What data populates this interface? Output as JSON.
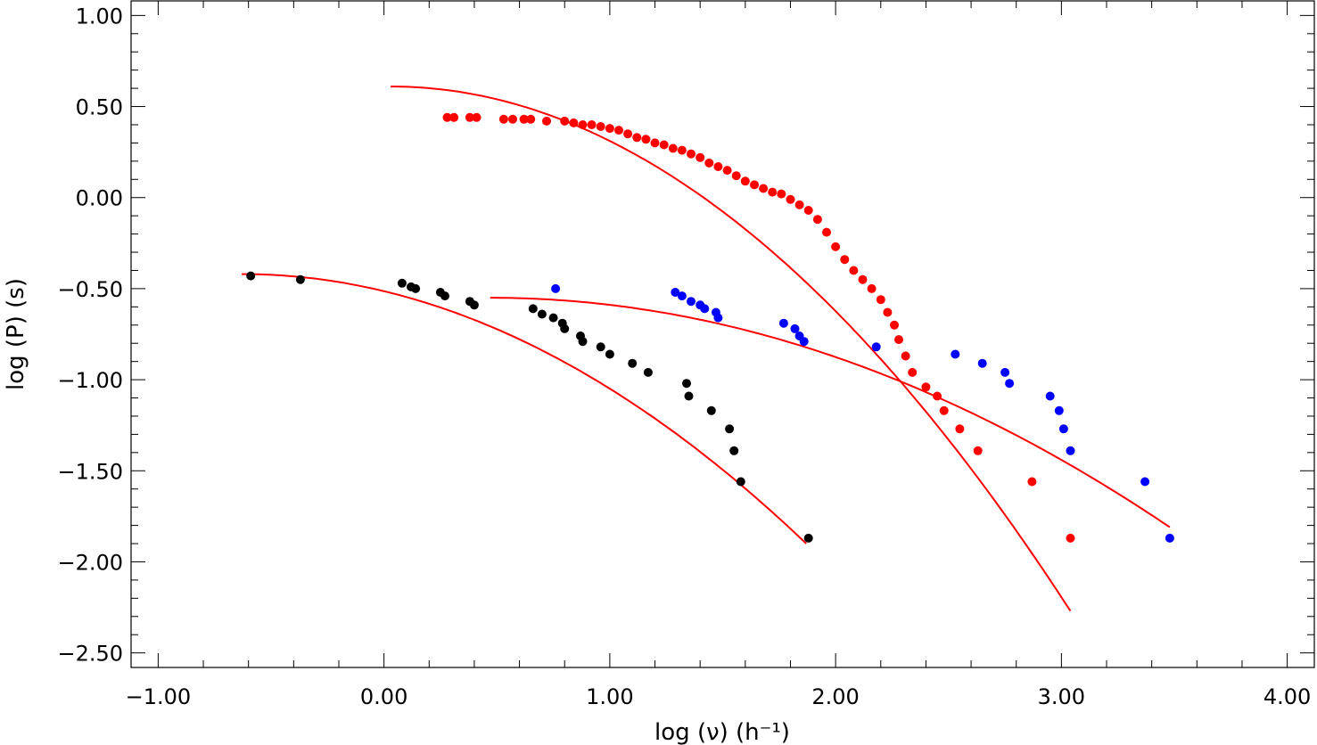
{
  "chart_data": {
    "type": "scatter",
    "title": "",
    "xlabel": "log (ν) (h⁻¹)",
    "ylabel": "log (P) (s)",
    "xlim": [
      -1.12,
      4.12
    ],
    "ylim": [
      -2.58,
      1.08
    ],
    "grid": false,
    "x_ticks": [
      -1.0,
      0.0,
      1.0,
      2.0,
      3.0,
      4.0
    ],
    "x_tick_labels": [
      "−1.00",
      "0.00",
      "1.00",
      "2.00",
      "3.00",
      "4.00"
    ],
    "y_ticks": [
      1.0,
      0.5,
      0.0,
      -0.5,
      -1.0,
      -1.5,
      -2.0,
      -2.5
    ],
    "y_tick_labels": [
      "1.00",
      "0.50",
      "0.00",
      "−0.50",
      "−1.00",
      "−1.50",
      "−2.00",
      "−2.50"
    ],
    "series": [
      {
        "name": "black",
        "color": "#000000",
        "points": [
          [
            -0.59,
            -0.43
          ],
          [
            -0.37,
            -0.45
          ],
          [
            0.08,
            -0.47
          ],
          [
            0.12,
            -0.49
          ],
          [
            0.14,
            -0.5
          ],
          [
            0.25,
            -0.52
          ],
          [
            0.27,
            -0.54
          ],
          [
            0.38,
            -0.57
          ],
          [
            0.4,
            -0.59
          ],
          [
            0.66,
            -0.61
          ],
          [
            0.7,
            -0.64
          ],
          [
            0.75,
            -0.66
          ],
          [
            0.79,
            -0.69
          ],
          [
            0.8,
            -0.72
          ],
          [
            0.87,
            -0.76
          ],
          [
            0.88,
            -0.79
          ],
          [
            0.96,
            -0.82
          ],
          [
            1.0,
            -0.86
          ],
          [
            1.1,
            -0.91
          ],
          [
            1.17,
            -0.96
          ],
          [
            1.34,
            -1.02
          ],
          [
            1.35,
            -1.09
          ],
          [
            1.45,
            -1.17
          ],
          [
            1.53,
            -1.27
          ],
          [
            1.55,
            -1.39
          ],
          [
            1.58,
            -1.56
          ],
          [
            1.88,
            -1.87
          ]
        ],
        "fit": [
          -0.63,
          1.87,
          -0.42,
          -1.9
        ]
      },
      {
        "name": "blue",
        "color": "#0000ff",
        "points": [
          [
            0.76,
            -0.5
          ],
          [
            1.29,
            -0.52
          ],
          [
            1.32,
            -0.54
          ],
          [
            1.36,
            -0.57
          ],
          [
            1.4,
            -0.59
          ],
          [
            1.42,
            -0.61
          ],
          [
            1.47,
            -0.63
          ],
          [
            1.48,
            -0.66
          ],
          [
            1.77,
            -0.69
          ],
          [
            1.82,
            -0.72
          ],
          [
            1.84,
            -0.76
          ],
          [
            1.86,
            -0.79
          ],
          [
            2.18,
            -0.82
          ],
          [
            2.53,
            -0.86
          ],
          [
            2.65,
            -0.91
          ],
          [
            2.75,
            -0.96
          ],
          [
            2.77,
            -1.02
          ],
          [
            2.95,
            -1.09
          ],
          [
            2.99,
            -1.17
          ],
          [
            3.01,
            -1.27
          ],
          [
            3.04,
            -1.39
          ],
          [
            3.37,
            -1.56
          ],
          [
            3.48,
            -1.87
          ]
        ],
        "fit": [
          0.47,
          3.48,
          -0.55,
          -1.81
        ]
      },
      {
        "name": "red",
        "color": "#ff0000",
        "points": [
          [
            0.28,
            0.44
          ],
          [
            0.31,
            0.44
          ],
          [
            0.38,
            0.44
          ],
          [
            0.41,
            0.44
          ],
          [
            0.53,
            0.43
          ],
          [
            0.57,
            0.43
          ],
          [
            0.62,
            0.43
          ],
          [
            0.65,
            0.43
          ],
          [
            0.72,
            0.42
          ],
          [
            0.8,
            0.42
          ],
          [
            0.84,
            0.41
          ],
          [
            0.88,
            0.4
          ],
          [
            0.92,
            0.4
          ],
          [
            0.96,
            0.39
          ],
          [
            1.0,
            0.38
          ],
          [
            1.04,
            0.37
          ],
          [
            1.08,
            0.35
          ],
          [
            1.12,
            0.33
          ],
          [
            1.16,
            0.32
          ],
          [
            1.2,
            0.3
          ],
          [
            1.24,
            0.29
          ],
          [
            1.28,
            0.27
          ],
          [
            1.32,
            0.26
          ],
          [
            1.36,
            0.24
          ],
          [
            1.4,
            0.22
          ],
          [
            1.44,
            0.19
          ],
          [
            1.48,
            0.17
          ],
          [
            1.52,
            0.15
          ],
          [
            1.56,
            0.12
          ],
          [
            1.6,
            0.09
          ],
          [
            1.64,
            0.07
          ],
          [
            1.68,
            0.05
          ],
          [
            1.72,
            0.03
          ],
          [
            1.76,
            0.02
          ],
          [
            1.8,
            -0.01
          ],
          [
            1.84,
            -0.04
          ],
          [
            1.88,
            -0.07
          ],
          [
            1.92,
            -0.12
          ],
          [
            1.96,
            -0.19
          ],
          [
            2.0,
            -0.27
          ],
          [
            2.04,
            -0.34
          ],
          [
            2.08,
            -0.4
          ],
          [
            2.12,
            -0.45
          ],
          [
            2.16,
            -0.5
          ],
          [
            2.2,
            -0.56
          ],
          [
            2.23,
            -0.63
          ],
          [
            2.26,
            -0.7
          ],
          [
            2.28,
            -0.78
          ],
          [
            2.31,
            -0.87
          ],
          [
            2.34,
            -0.96
          ],
          [
            2.4,
            -1.04
          ],
          [
            2.45,
            -1.09
          ],
          [
            2.48,
            -1.17
          ],
          [
            2.55,
            -1.27
          ],
          [
            2.63,
            -1.39
          ],
          [
            2.87,
            -1.56
          ],
          [
            3.04,
            -1.87
          ]
        ],
        "fit": [
          0.03,
          3.04,
          0.61,
          -2.27
        ]
      }
    ]
  }
}
